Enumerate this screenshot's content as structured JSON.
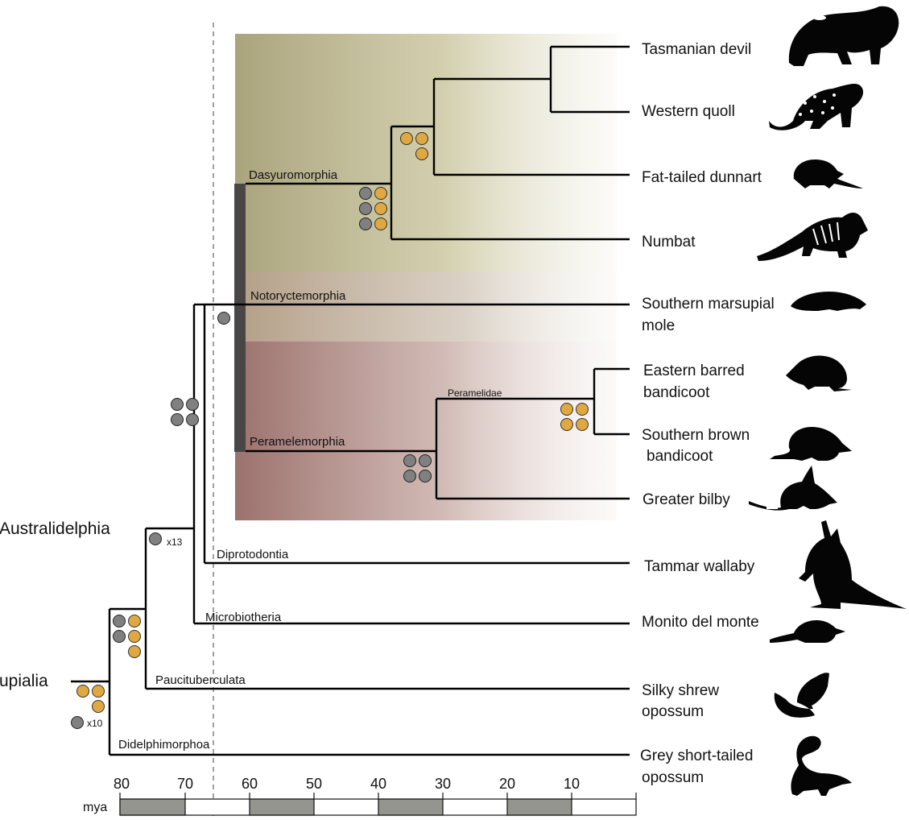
{
  "species": [
    "Tasmanian devil",
    "Western quoll",
    "Fat-tailed dunnart",
    "Numbat",
    "Southern marsupial",
    "mole",
    "Eastern barred",
    "bandicoot",
    "Southern brown",
    "bandicoot",
    "Greater bilby",
    "Tammar wallaby",
    "Monito del monte",
    "Silky shrew",
    "opossum",
    "Grey short-tailed",
    "opossum"
  ],
  "clades": [
    "Dasyuromorphia",
    "Notoryctemorphia",
    "Peramelemorphia",
    "Peramelidae",
    "Diprotodontia",
    "Microbiotheria",
    "Paucituberculata",
    "Didelphimorphoa"
  ],
  "groups": [
    "Australidelphia",
    "upialia"
  ],
  "multipliers": [
    "x13",
    "x10"
  ],
  "axis": {
    "unit": "mya",
    "ticks": [
      "80",
      "70",
      "60",
      "50",
      "40",
      "30",
      "20",
      "10"
    ]
  },
  "colors": {
    "dasyuro_band": "#b1ab86",
    "peramel_band": "#a47a76",
    "notoryct_band": "#bba58a",
    "gray_event": "#808080",
    "orange_event": "#e0a840",
    "scale_fill": "#959590"
  },
  "icons": [
    "tasmanian-devil-icon",
    "western-quoll-icon",
    "dunnart-icon",
    "numbat-icon",
    "marsupial-mole-icon",
    "eastern-bandicoot-icon",
    "southern-bandicoot-icon",
    "bilby-icon",
    "wallaby-icon",
    "monito-icon",
    "shrew-opossum-icon",
    "grey-opossum-icon"
  ]
}
